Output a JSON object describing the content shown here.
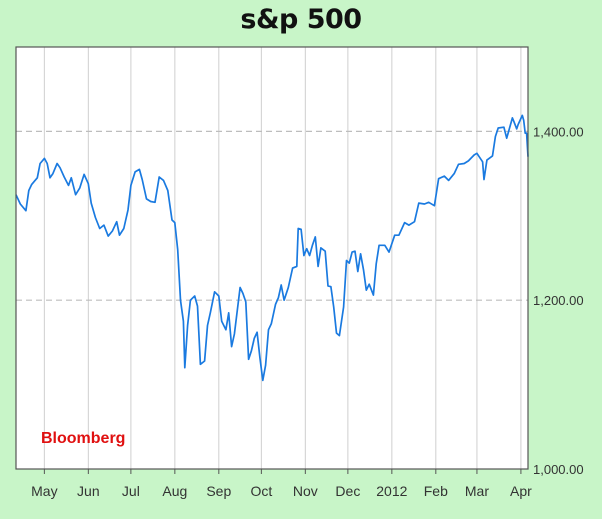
{
  "chart_data": {
    "type": "line",
    "title": "s&p 500",
    "source_label": "Bloomberg",
    "xlabel": "",
    "ylabel": "",
    "ylim": [
      1000,
      1500
    ],
    "yticks": [
      1000,
      1200,
      1400
    ],
    "ytick_labels": [
      "1,000.00",
      "1,200.00",
      "1,400.00"
    ],
    "xtick_labels": [
      "May",
      "Jun",
      "Jul",
      "Aug",
      "Sep",
      "Oct",
      "Nov",
      "Dec",
      "2012",
      "Feb",
      "Mar",
      "Apr"
    ],
    "x_range": [
      "2011-04-11",
      "2012-04-06"
    ],
    "grid": true,
    "line_color": "#1a7ae0",
    "series": [
      {
        "values": [
          [
            "2011-04-11",
            1325
          ],
          [
            "2011-04-14",
            1314
          ],
          [
            "2011-04-18",
            1306
          ],
          [
            "2011-04-20",
            1330
          ],
          [
            "2011-04-22",
            1337
          ],
          [
            "2011-04-26",
            1345
          ],
          [
            "2011-04-28",
            1362
          ],
          [
            "2011-05-01",
            1368
          ],
          [
            "2011-05-03",
            1362
          ],
          [
            "2011-05-05",
            1345
          ],
          [
            "2011-05-07",
            1350
          ],
          [
            "2011-05-10",
            1362
          ],
          [
            "2011-05-12",
            1357
          ],
          [
            "2011-05-15",
            1346
          ],
          [
            "2011-05-18",
            1336
          ],
          [
            "2011-05-20",
            1345
          ],
          [
            "2011-05-23",
            1325
          ],
          [
            "2011-05-26",
            1333
          ],
          [
            "2011-05-29",
            1349
          ],
          [
            "2011-06-01",
            1338
          ],
          [
            "2011-06-03",
            1315
          ],
          [
            "2011-06-06",
            1298
          ],
          [
            "2011-06-09",
            1285
          ],
          [
            "2011-06-12",
            1289
          ],
          [
            "2011-06-15",
            1276
          ],
          [
            "2011-06-18",
            1282
          ],
          [
            "2011-06-21",
            1293
          ],
          [
            "2011-06-23",
            1277
          ],
          [
            "2011-06-26",
            1285
          ],
          [
            "2011-06-29",
            1307
          ],
          [
            "2011-07-01",
            1336
          ],
          [
            "2011-07-04",
            1352
          ],
          [
            "2011-07-07",
            1355
          ],
          [
            "2011-07-09",
            1343
          ],
          [
            "2011-07-12",
            1320
          ],
          [
            "2011-07-15",
            1317
          ],
          [
            "2011-07-18",
            1316
          ],
          [
            "2011-07-21",
            1346
          ],
          [
            "2011-07-24",
            1342
          ],
          [
            "2011-07-27",
            1330
          ],
          [
            "2011-07-30",
            1295
          ],
          [
            "2011-08-01",
            1292
          ],
          [
            "2011-08-03",
            1260
          ],
          [
            "2011-08-05",
            1200
          ],
          [
            "2011-08-07",
            1175
          ],
          [
            "2011-08-08",
            1120
          ],
          [
            "2011-08-10",
            1170
          ],
          [
            "2011-08-12",
            1200
          ],
          [
            "2011-08-15",
            1205
          ],
          [
            "2011-08-17",
            1193
          ],
          [
            "2011-08-19",
            1124
          ],
          [
            "2011-08-22",
            1128
          ],
          [
            "2011-08-24",
            1170
          ],
          [
            "2011-08-26",
            1185
          ],
          [
            "2011-08-29",
            1210
          ],
          [
            "2011-09-01",
            1205
          ],
          [
            "2011-09-03",
            1175
          ],
          [
            "2011-09-06",
            1165
          ],
          [
            "2011-09-08",
            1185
          ],
          [
            "2011-09-10",
            1145
          ],
          [
            "2011-09-12",
            1160
          ],
          [
            "2011-09-14",
            1188
          ],
          [
            "2011-09-16",
            1215
          ],
          [
            "2011-09-18",
            1208
          ],
          [
            "2011-09-20",
            1198
          ],
          [
            "2011-09-22",
            1130
          ],
          [
            "2011-09-24",
            1140
          ],
          [
            "2011-09-26",
            1155
          ],
          [
            "2011-09-28",
            1162
          ],
          [
            "2011-09-30",
            1132
          ],
          [
            "2011-10-02",
            1105
          ],
          [
            "2011-10-04",
            1123
          ],
          [
            "2011-10-06",
            1165
          ],
          [
            "2011-10-08",
            1172
          ],
          [
            "2011-10-11",
            1195
          ],
          [
            "2011-10-13",
            1203
          ],
          [
            "2011-10-15",
            1218
          ],
          [
            "2011-10-17",
            1200
          ],
          [
            "2011-10-20",
            1215
          ],
          [
            "2011-10-23",
            1238
          ],
          [
            "2011-10-26",
            1240
          ],
          [
            "2011-10-27",
            1285
          ],
          [
            "2011-10-29",
            1284
          ],
          [
            "2011-10-31",
            1253
          ],
          [
            "2011-11-02",
            1261
          ],
          [
            "2011-11-04",
            1253
          ],
          [
            "2011-11-06",
            1265
          ],
          [
            "2011-11-08",
            1275
          ],
          [
            "2011-11-10",
            1240
          ],
          [
            "2011-11-12",
            1262
          ],
          [
            "2011-11-15",
            1258
          ],
          [
            "2011-11-17",
            1217
          ],
          [
            "2011-11-19",
            1216
          ],
          [
            "2011-11-21",
            1192
          ],
          [
            "2011-11-23",
            1161
          ],
          [
            "2011-11-25",
            1158
          ],
          [
            "2011-11-28",
            1192
          ],
          [
            "2011-11-30",
            1247
          ],
          [
            "2011-12-02",
            1244
          ],
          [
            "2011-12-04",
            1257
          ],
          [
            "2011-12-06",
            1258
          ],
          [
            "2011-12-08",
            1234
          ],
          [
            "2011-12-10",
            1255
          ],
          [
            "2011-12-12",
            1236
          ],
          [
            "2011-12-14",
            1212
          ],
          [
            "2011-12-16",
            1219
          ],
          [
            "2011-12-19",
            1206
          ],
          [
            "2011-12-21",
            1243
          ],
          [
            "2011-12-23",
            1265
          ],
          [
            "2011-12-27",
            1265
          ],
          [
            "2011-12-30",
            1257
          ],
          [
            "2012-01-03",
            1277
          ],
          [
            "2012-01-06",
            1277
          ],
          [
            "2012-01-10",
            1292
          ],
          [
            "2012-01-13",
            1289
          ],
          [
            "2012-01-17",
            1293
          ],
          [
            "2012-01-20",
            1315
          ],
          [
            "2012-01-24",
            1314
          ],
          [
            "2012-01-27",
            1316
          ],
          [
            "2012-01-31",
            1312
          ],
          [
            "2012-02-03",
            1344
          ],
          [
            "2012-02-07",
            1347
          ],
          [
            "2012-02-10",
            1342
          ],
          [
            "2012-02-14",
            1350
          ],
          [
            "2012-02-17",
            1361
          ],
          [
            "2012-02-21",
            1362
          ],
          [
            "2012-02-24",
            1365
          ],
          [
            "2012-02-28",
            1372
          ],
          [
            "2012-03-01",
            1374
          ],
          [
            "2012-03-05",
            1364
          ],
          [
            "2012-03-06",
            1343
          ],
          [
            "2012-03-08",
            1366
          ],
          [
            "2012-03-12",
            1371
          ],
          [
            "2012-03-14",
            1394
          ],
          [
            "2012-03-16",
            1404
          ],
          [
            "2012-03-20",
            1405
          ],
          [
            "2012-03-22",
            1392
          ],
          [
            "2012-03-26",
            1416
          ],
          [
            "2012-03-27",
            1412
          ],
          [
            "2012-03-29",
            1403
          ],
          [
            "2012-03-30",
            1408
          ],
          [
            "2012-04-02",
            1419
          ],
          [
            "2012-04-03",
            1413
          ],
          [
            "2012-04-04",
            1398
          ],
          [
            "2012-04-05",
            1398
          ],
          [
            "2012-04-06",
            1370
          ]
        ]
      }
    ]
  }
}
